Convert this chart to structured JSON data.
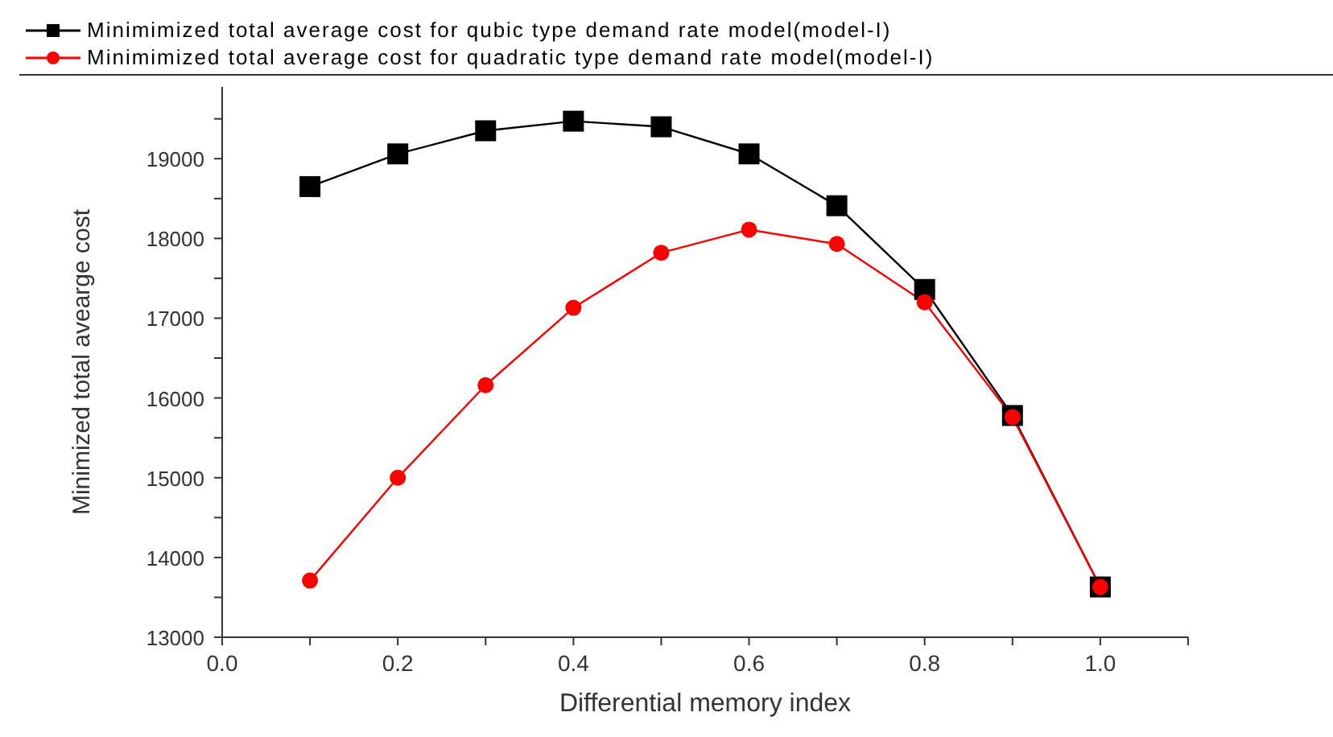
{
  "chart_data": {
    "type": "line",
    "xlabel": "Differential memory index",
    "ylabel": "Minimized total avearge cost",
    "x": [
      0.1,
      0.2,
      0.3,
      0.4,
      0.5,
      0.6,
      0.7,
      0.8,
      0.9,
      1.0
    ],
    "series": [
      {
        "name": "Minimimized total average cost for qubic type demand rate model(model-I)",
        "color": "#000000",
        "marker": "square",
        "values": [
          18650,
          19060,
          19350,
          19470,
          19400,
          19060,
          18410,
          17360,
          15780,
          13630
        ]
      },
      {
        "name": "Minimimized total average cost for quadratic type demand rate model(model-I)",
        "color": "#ff0000",
        "marker": "circle",
        "values": [
          13710,
          15000,
          16160,
          17130,
          17820,
          18110,
          17930,
          17200,
          15760,
          13630
        ]
      }
    ],
    "xlim": [
      0.0,
      1.1
    ],
    "xticks": [
      {
        "value": 0.0,
        "label": "0.0"
      },
      {
        "value": 0.1,
        "label": null
      },
      {
        "value": 0.2,
        "label": "0.2"
      },
      {
        "value": 0.3,
        "label": null
      },
      {
        "value": 0.4,
        "label": "0.4"
      },
      {
        "value": 0.5,
        "label": null
      },
      {
        "value": 0.6,
        "label": "0.6"
      },
      {
        "value": 0.7,
        "label": null
      },
      {
        "value": 0.8,
        "label": "0.8"
      },
      {
        "value": 0.9,
        "label": null
      },
      {
        "value": 1.0,
        "label": "1.0"
      },
      {
        "value": 1.1,
        "label": null
      }
    ],
    "ylim": [
      13000,
      19900
    ],
    "yticks": [
      13000,
      {
        "value": 13500,
        "label": null
      },
      14000,
      {
        "value": 14500,
        "label": null
      },
      15000,
      {
        "value": 15500,
        "label": null
      },
      16000,
      {
        "value": 16500,
        "label": null
      },
      17000,
      {
        "value": 17500,
        "label": null
      },
      18000,
      {
        "value": 18500,
        "label": null
      },
      19000,
      {
        "value": 19500,
        "label": null
      }
    ],
    "grid": false,
    "legend": "top",
    "line_style": "solid"
  }
}
